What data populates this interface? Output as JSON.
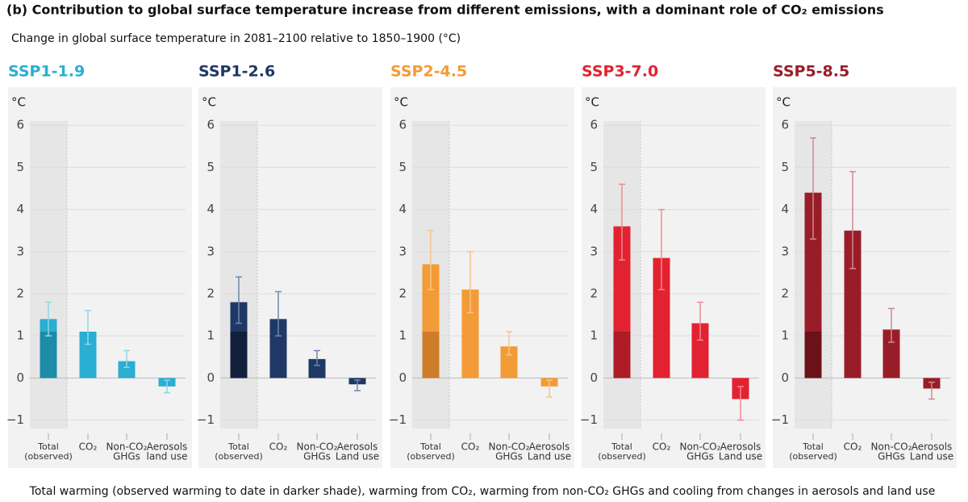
{
  "title": "(b) Contribution to global surface temperature increase from different emissions, with a dominant role of CO₂ emissions",
  "subtitle": "Change in global surface temperature in 2081–2100 relative to 1850–1900 (°C)",
  "caption": "Total warming (observed warming to date in darker shade), warming from CO₂, warming from non-CO₂ GHGs and cooling from changes in aerosols and land use",
  "chart_data": [
    {
      "type": "bar",
      "title": "SSP1-1.9",
      "y_label": "°C",
      "categories": [
        [
          "Total",
          "(observed)"
        ],
        [
          "CO₂"
        ],
        [
          "Non-CO₂",
          "GHGs"
        ],
        [
          "Aerosols",
          "land use"
        ]
      ],
      "values": [
        1.4,
        1.1,
        0.4,
        -0.2
      ],
      "ranges": [
        [
          1.0,
          1.8
        ],
        [
          0.8,
          1.6
        ],
        [
          0.25,
          0.65
        ],
        [
          -0.05,
          -0.35
        ]
      ],
      "observed": 1.1,
      "color": "#2aaed2",
      "observed_color": "#1e8ba8",
      "error_color": "#8fd6e8",
      "ylim": [
        -1.2,
        6.1
      ],
      "yticks": [
        {
          "value": -1,
          "label": "−1"
        },
        0,
        1,
        2,
        3,
        4,
        5,
        6
      ],
      "grid": true
    },
    {
      "type": "bar",
      "title": "SSP1-2.6",
      "y_label": "°C",
      "categories": [
        [
          "Total",
          "(observed)"
        ],
        [
          "CO₂"
        ],
        [
          "Non-CO₂",
          "GHGs"
        ],
        [
          "Aerosols",
          "Land use"
        ]
      ],
      "values": [
        1.8,
        1.4,
        0.45,
        -0.15
      ],
      "ranges": [
        [
          1.3,
          2.4
        ],
        [
          1.0,
          2.05
        ],
        [
          0.3,
          0.65
        ],
        [
          -0.05,
          -0.3
        ]
      ],
      "observed": 1.1,
      "color": "#1f3866",
      "observed_color": "#111f3b",
      "error_color": "#6f88b0",
      "ylim": [
        -1.2,
        6.1
      ],
      "yticks": [
        {
          "value": -1,
          "label": "−1"
        },
        0,
        1,
        2,
        3,
        4,
        5,
        6
      ],
      "grid": true
    },
    {
      "type": "bar",
      "title": "SSP2-4.5",
      "y_label": "°C",
      "categories": [
        [
          "Total",
          "(observed)"
        ],
        [
          "CO₂"
        ],
        [
          "Non-CO₂",
          "GHGs"
        ],
        [
          "Aerosols",
          "Land use"
        ]
      ],
      "values": [
        2.7,
        2.1,
        0.75,
        -0.2
      ],
      "ranges": [
        [
          2.1,
          3.5
        ],
        [
          1.55,
          3.0
        ],
        [
          0.55,
          1.1
        ],
        [
          -0.05,
          -0.45
        ]
      ],
      "observed": 1.1,
      "color": "#f39b37",
      "observed_color": "#cf7c2a",
      "error_color": "#f8c58a",
      "ylim": [
        -1.2,
        6.1
      ],
      "yticks": [
        {
          "value": -1,
          "label": "−1"
        },
        0,
        1,
        2,
        3,
        4,
        5,
        6
      ],
      "grid": true
    },
    {
      "type": "bar",
      "title": "SSP3-7.0",
      "y_label": "°C",
      "categories": [
        [
          "Total",
          "(observed)"
        ],
        [
          "CO₂"
        ],
        [
          "Non-CO₂",
          "GHGs"
        ],
        [
          "Aerosols",
          "Land use"
        ]
      ],
      "values": [
        3.6,
        2.85,
        1.3,
        -0.5
      ],
      "ranges": [
        [
          2.8,
          4.6
        ],
        [
          2.1,
          4.0
        ],
        [
          0.9,
          1.8
        ],
        [
          -0.2,
          -1.0
        ]
      ],
      "observed": 1.1,
      "color": "#e22230",
      "observed_color": "#ae1b26",
      "error_color": "#ef8a90",
      "ylim": [
        -1.2,
        6.1
      ],
      "yticks": [
        {
          "value": -1,
          "label": "−1"
        },
        0,
        1,
        2,
        3,
        4,
        5,
        6
      ],
      "grid": true
    },
    {
      "type": "bar",
      "title": "SSP5-8.5",
      "y_label": "°C",
      "categories": [
        [
          "Total",
          "(observed)"
        ],
        [
          "CO₂"
        ],
        [
          "Non-CO₂",
          "GHGs"
        ],
        [
          "Aerosols",
          "Land use"
        ]
      ],
      "values": [
        4.4,
        3.5,
        1.15,
        -0.25
      ],
      "ranges": [
        [
          3.3,
          5.7
        ],
        [
          2.6,
          4.9
        ],
        [
          0.85,
          1.65
        ],
        [
          -0.1,
          -0.5
        ]
      ],
      "observed": 1.1,
      "color": "#991d28",
      "observed_color": "#6a111a",
      "error_color": "#d08a90",
      "ylim": [
        -1.2,
        6.1
      ],
      "yticks": [
        {
          "value": -1,
          "label": "−1"
        },
        0,
        1,
        2,
        3,
        4,
        5,
        6
      ],
      "grid": true
    }
  ]
}
